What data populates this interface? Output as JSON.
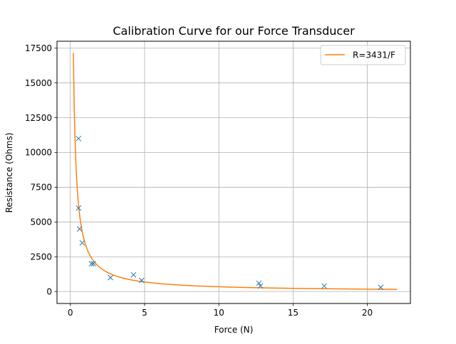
{
  "chart_data": {
    "type": "scatter",
    "title": "Calibration Curve for our Force Transducer",
    "xlabel": "Force (N)",
    "ylabel": "Resistance (Ohms)",
    "xlim": [
      -0.9,
      22.9
    ],
    "ylim": [
      -861,
      18000
    ],
    "xticks": [
      0,
      5,
      10,
      15,
      20
    ],
    "yticks": [
      0,
      2500,
      5000,
      7500,
      10000,
      12500,
      15000,
      17500
    ],
    "grid": true,
    "legend_position": "top-right",
    "colors": {
      "points": "#1f77b4",
      "fit": "#ff7f0e",
      "grid": "#b0b0b0"
    },
    "series": [
      {
        "kind": "points",
        "marker": "x",
        "points": [
          [
            0.55,
            11000
          ],
          [
            0.55,
            6000
          ],
          [
            0.62,
            4500
          ],
          [
            0.8,
            3500
          ],
          [
            1.42,
            2000
          ],
          [
            1.55,
            2000
          ],
          [
            2.7,
            1000
          ],
          [
            4.25,
            1200
          ],
          [
            4.8,
            800
          ],
          [
            12.7,
            600
          ],
          [
            12.8,
            400
          ],
          [
            17.1,
            400
          ],
          [
            20.9,
            300
          ]
        ]
      },
      {
        "kind": "fit",
        "name": "R=3431/F",
        "coefficient": 3431,
        "x_start": 0.2,
        "x_end": 22.0
      }
    ]
  }
}
